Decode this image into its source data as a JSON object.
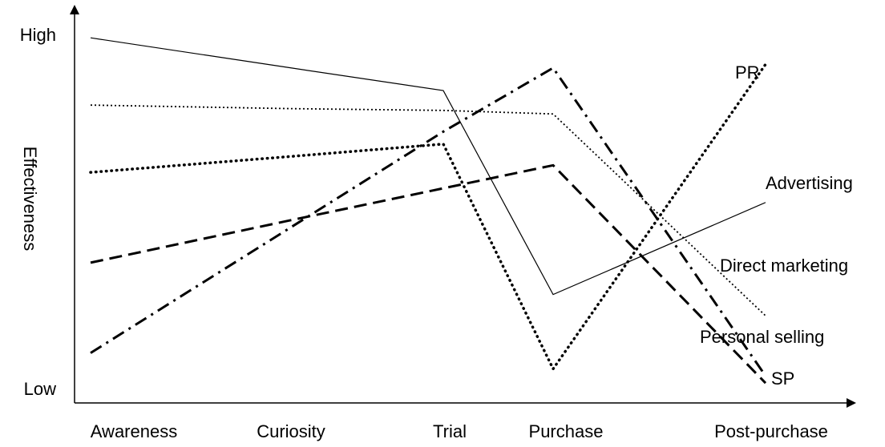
{
  "chart_data": {
    "type": "line",
    "y_label": "Effectiveness",
    "categories": [
      "Awareness",
      "Curiosity",
      "Trial",
      "Purchase",
      "Post-purchase"
    ],
    "ylim": [
      0,
      10
    ],
    "yticks": [
      {
        "value": 10,
        "label": "High"
      },
      {
        "value": 0,
        "label": "Low"
      }
    ],
    "series": [
      {
        "name": "Advertising",
        "color": "#000000",
        "style": "solid",
        "values": [
          9.95,
          9.1,
          8.46,
          2.7,
          5.3
        ]
      },
      {
        "name": "Direct marketing",
        "color": "#000000",
        "style": "dotted",
        "values": [
          8.05,
          7.95,
          7.9,
          7.8,
          2.1
        ]
      },
      {
        "name": "Personal selling",
        "color": "#000000",
        "style": "dashdot",
        "values": [
          1.05,
          4.6,
          7.3,
          9.1,
          0.4
        ]
      },
      {
        "name": "SP",
        "color": "#000000",
        "style": "dashed",
        "values": [
          3.6,
          4.8,
          5.7,
          6.35,
          0.2
        ]
      },
      {
        "name": "PR",
        "color": "#000000",
        "style": "heavydotted",
        "values": [
          6.15,
          6.6,
          6.95,
          0.6,
          9.2
        ]
      }
    ]
  }
}
